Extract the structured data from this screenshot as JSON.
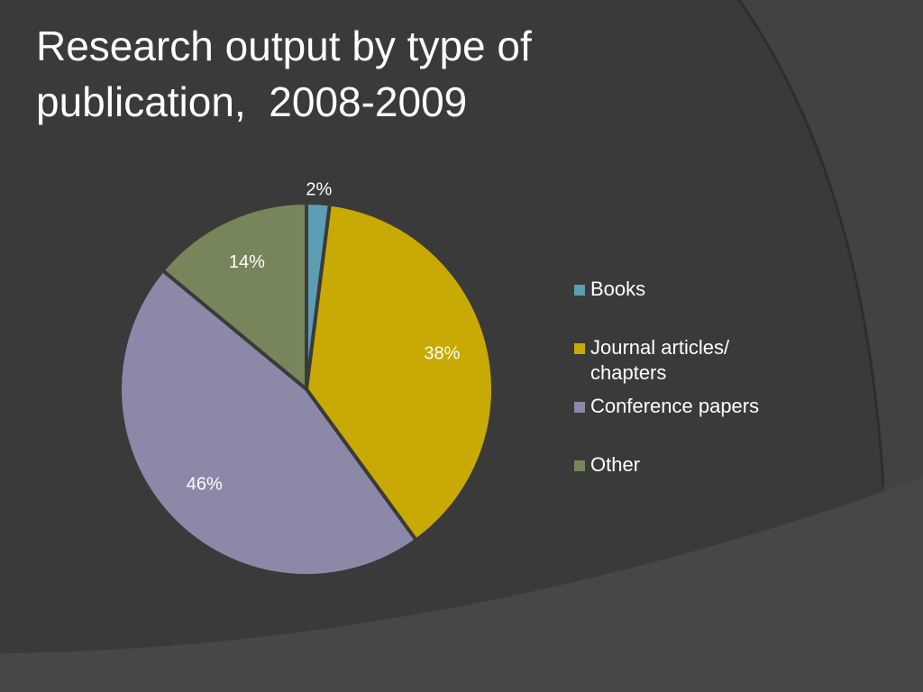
{
  "chart_data": {
    "type": "pie",
    "title": "Research output by type of publication,  2008-2009",
    "categories": [
      "Books",
      "Journal articles/ chapters",
      "Conference papers",
      "Other"
    ],
    "values": [
      2,
      38,
      46,
      14
    ],
    "value_labels": [
      "2%",
      "38%",
      "46%",
      "14%"
    ],
    "colors": [
      "#5f9db3",
      "#c9a904",
      "#8c88a8",
      "#76865a"
    ],
    "legend": "right"
  }
}
